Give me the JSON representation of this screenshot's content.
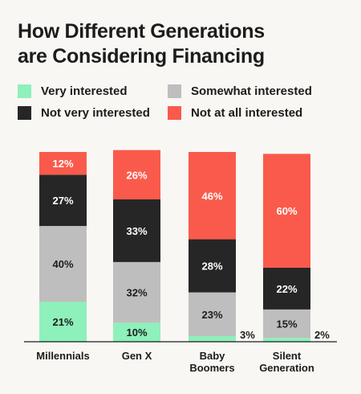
{
  "chart_data": {
    "type": "bar",
    "stacked": true,
    "title_lines": [
      "How Different Generations",
      "are Considering Financing"
    ],
    "categories": [
      [
        "Millennials"
      ],
      [
        "Gen X"
      ],
      [
        "Baby",
        "Boomers"
      ],
      [
        "Silent",
        "Generation"
      ]
    ],
    "series": [
      {
        "name": "Very interested",
        "color": "#8ef0bb",
        "label_color": "#1c1c1c",
        "values": [
          21,
          10,
          3,
          2
        ]
      },
      {
        "name": "Somewhat interested",
        "color": "#bfbebe",
        "label_color": "#1c1c1c",
        "values": [
          40,
          32,
          23,
          15
        ]
      },
      {
        "name": "Not very interested",
        "color": "#262626",
        "label_color": "#ffffff",
        "values": [
          27,
          33,
          28,
          22
        ]
      },
      {
        "name": "Not at all interested",
        "color": "#fa5a4b",
        "label_color": "#ffffff",
        "values": [
          12,
          26,
          46,
          60
        ]
      }
    ],
    "value_suffix": "%",
    "ylim": [
      0,
      100
    ],
    "grid": false,
    "legend_position": "top",
    "xlabel": "",
    "ylabel": ""
  }
}
